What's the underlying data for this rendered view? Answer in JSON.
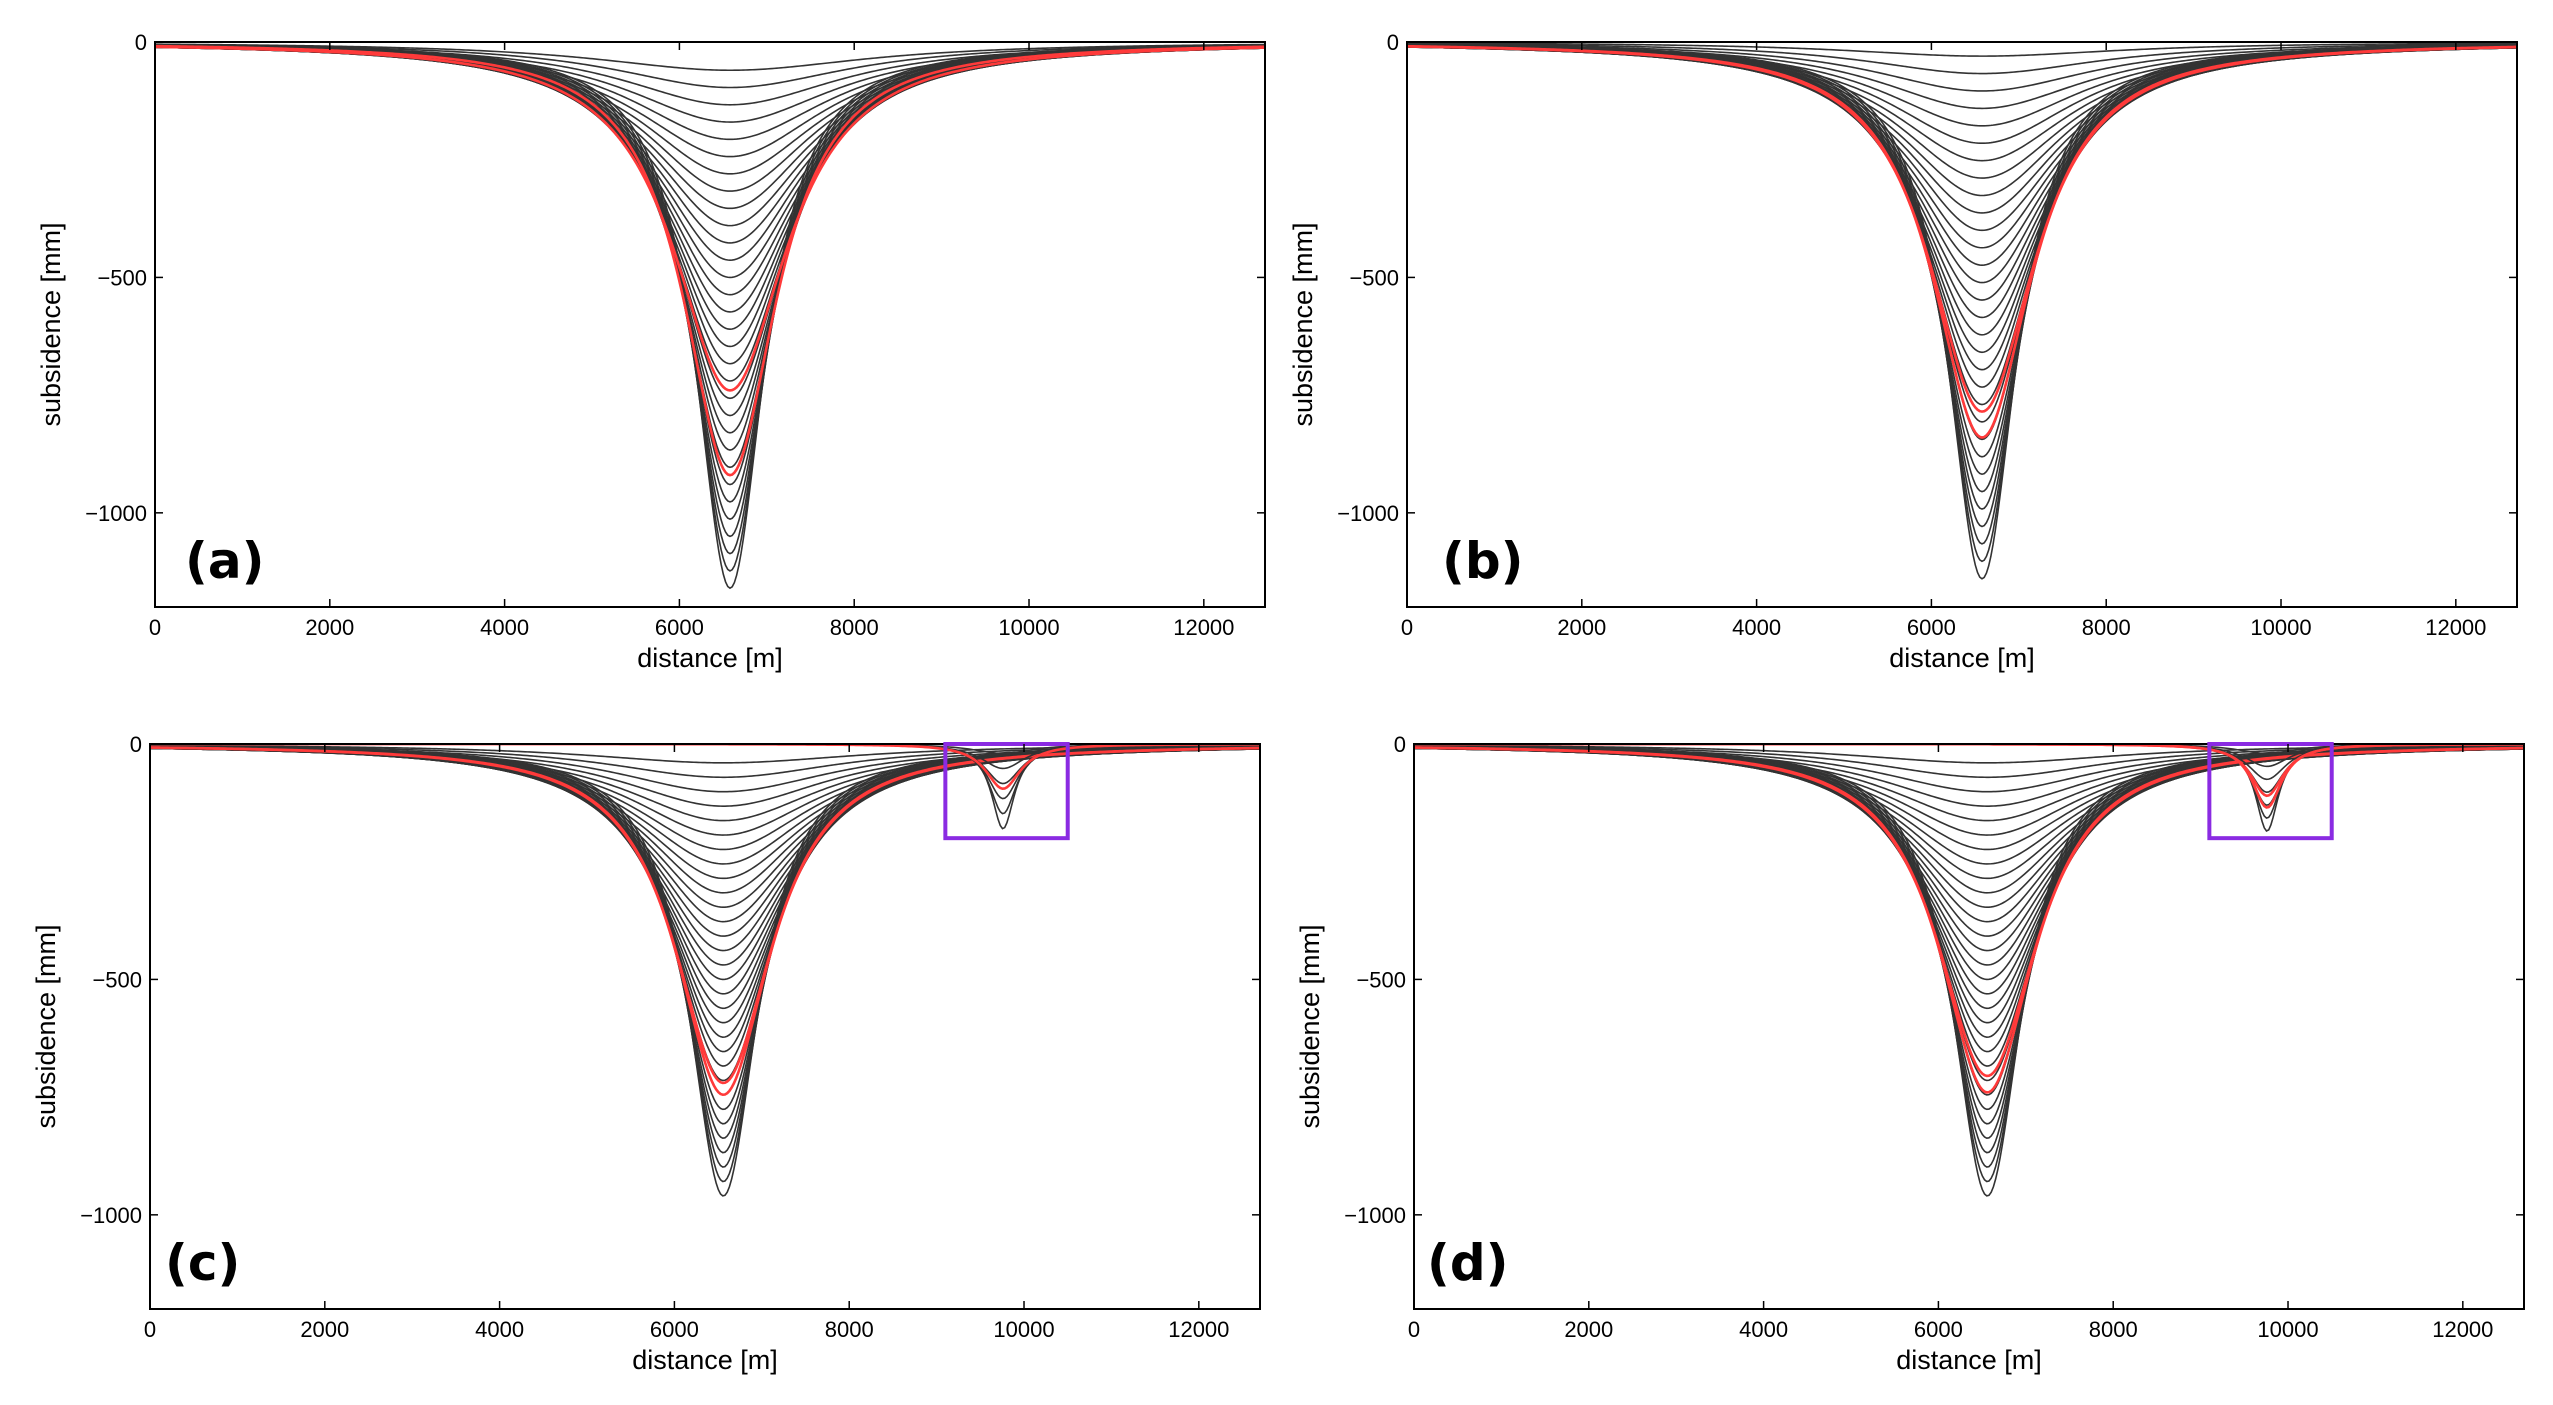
{
  "figure": {
    "description_note": "Four subsidence profile panels",
    "colors": {
      "profile": "#333333",
      "highlight": "#ff3a3a",
      "box": "#8a2be2",
      "axis": "#000000"
    }
  },
  "chart_data": [
    {
      "type": "line",
      "panel_label": "(a)",
      "xlabel": "distance [m]",
      "ylabel": "subsidence [mm]",
      "xlim": [
        0,
        12700
      ],
      "ylim": [
        -1200,
        0
      ],
      "xticks": [
        0,
        2000,
        4000,
        6000,
        8000,
        10000,
        12000
      ],
      "yticks": [
        0,
        -500,
        -1000
      ],
      "xtick_labels": [
        "0",
        "2000",
        "4000",
        "6000",
        "8000",
        "10000",
        "12000"
      ],
      "ytick_labels": [
        "0",
        "−500",
        "−1000"
      ],
      "bowl": {
        "center": 6580,
        "sigma_min": 480,
        "sigma_max": 1900,
        "depths": [
          -60,
          -1160
        ],
        "count": 31,
        "highlighted_depths": [
          -740,
          -920
        ]
      },
      "secondary_bowl": null,
      "highlight_box": null
    },
    {
      "type": "line",
      "panel_label": "(b)",
      "xlabel": "distance [m]",
      "ylabel": "subsidence [mm]",
      "xlim": [
        0,
        12700
      ],
      "ylim": [
        -1200,
        0
      ],
      "xticks": [
        0,
        2000,
        4000,
        6000,
        8000,
        10000,
        12000
      ],
      "yticks": [
        0,
        -500,
        -1000
      ],
      "xtick_labels": [
        "0",
        "2000",
        "4000",
        "6000",
        "8000",
        "10000",
        "12000"
      ],
      "ytick_labels": [
        "0",
        "−500",
        "−1000"
      ],
      "bowl": {
        "center": 6580,
        "sigma_min": 480,
        "sigma_max": 1900,
        "depths": [
          -30,
          -1140
        ],
        "count": 31,
        "highlighted_depths": [
          -785,
          -840
        ]
      },
      "secondary_bowl": null,
      "highlight_box": null
    },
    {
      "type": "line",
      "panel_label": "(c)",
      "xlabel": "distance [m]",
      "ylabel": "subsidence [mm]",
      "xlim": [
        0,
        12700
      ],
      "ylim": [
        -1200,
        0
      ],
      "xticks": [
        0,
        2000,
        4000,
        6000,
        8000,
        10000,
        12000
      ],
      "yticks": [
        0,
        -500,
        -1000
      ],
      "xtick_labels": [
        "0",
        "2000",
        "4000",
        "6000",
        "8000",
        "10000",
        "12000"
      ],
      "ytick_labels": [
        "0",
        "−500",
        "−1000"
      ],
      "bowl": {
        "center": 6560,
        "sigma_min": 480,
        "sigma_max": 1900,
        "depths": [
          -40,
          -960
        ],
        "count": 31,
        "highlighted_depths": [
          -720,
          -745
        ]
      },
      "secondary_bowl": {
        "center": 9760,
        "sigma_min": 160,
        "sigma_max": 420,
        "depths": [
          -20,
          -180
        ],
        "count": 6,
        "highlighted_depths": [
          -95
        ]
      },
      "highlight_box": {
        "x0": 9100,
        "x1": 10500,
        "y0": -200,
        "y1": 0
      }
    },
    {
      "type": "line",
      "panel_label": "(d)",
      "xlabel": "distance [m]",
      "ylabel": "subsidence [mm]",
      "xlim": [
        0,
        12700
      ],
      "ylim": [
        -1200,
        0
      ],
      "xticks": [
        0,
        2000,
        4000,
        6000,
        8000,
        10000,
        12000
      ],
      "yticks": [
        0,
        -500,
        -1000
      ],
      "xtick_labels": [
        "0",
        "2000",
        "4000",
        "6000",
        "8000",
        "10000",
        "12000"
      ],
      "ytick_labels": [
        "0",
        "−500",
        "−1000"
      ],
      "bowl": {
        "center": 6560,
        "sigma_min": 480,
        "sigma_max": 1900,
        "depths": [
          -40,
          -960
        ],
        "count": 31,
        "highlighted_depths": [
          -705,
          -740
        ]
      },
      "secondary_bowl": {
        "center": 9760,
        "sigma_min": 160,
        "sigma_max": 420,
        "depths": [
          -20,
          -185
        ],
        "count": 7,
        "highlighted_depths": [
          -110,
          -135
        ]
      },
      "highlight_box": {
        "x0": 9100,
        "x1": 10500,
        "y0": -200,
        "y1": 0
      }
    }
  ]
}
